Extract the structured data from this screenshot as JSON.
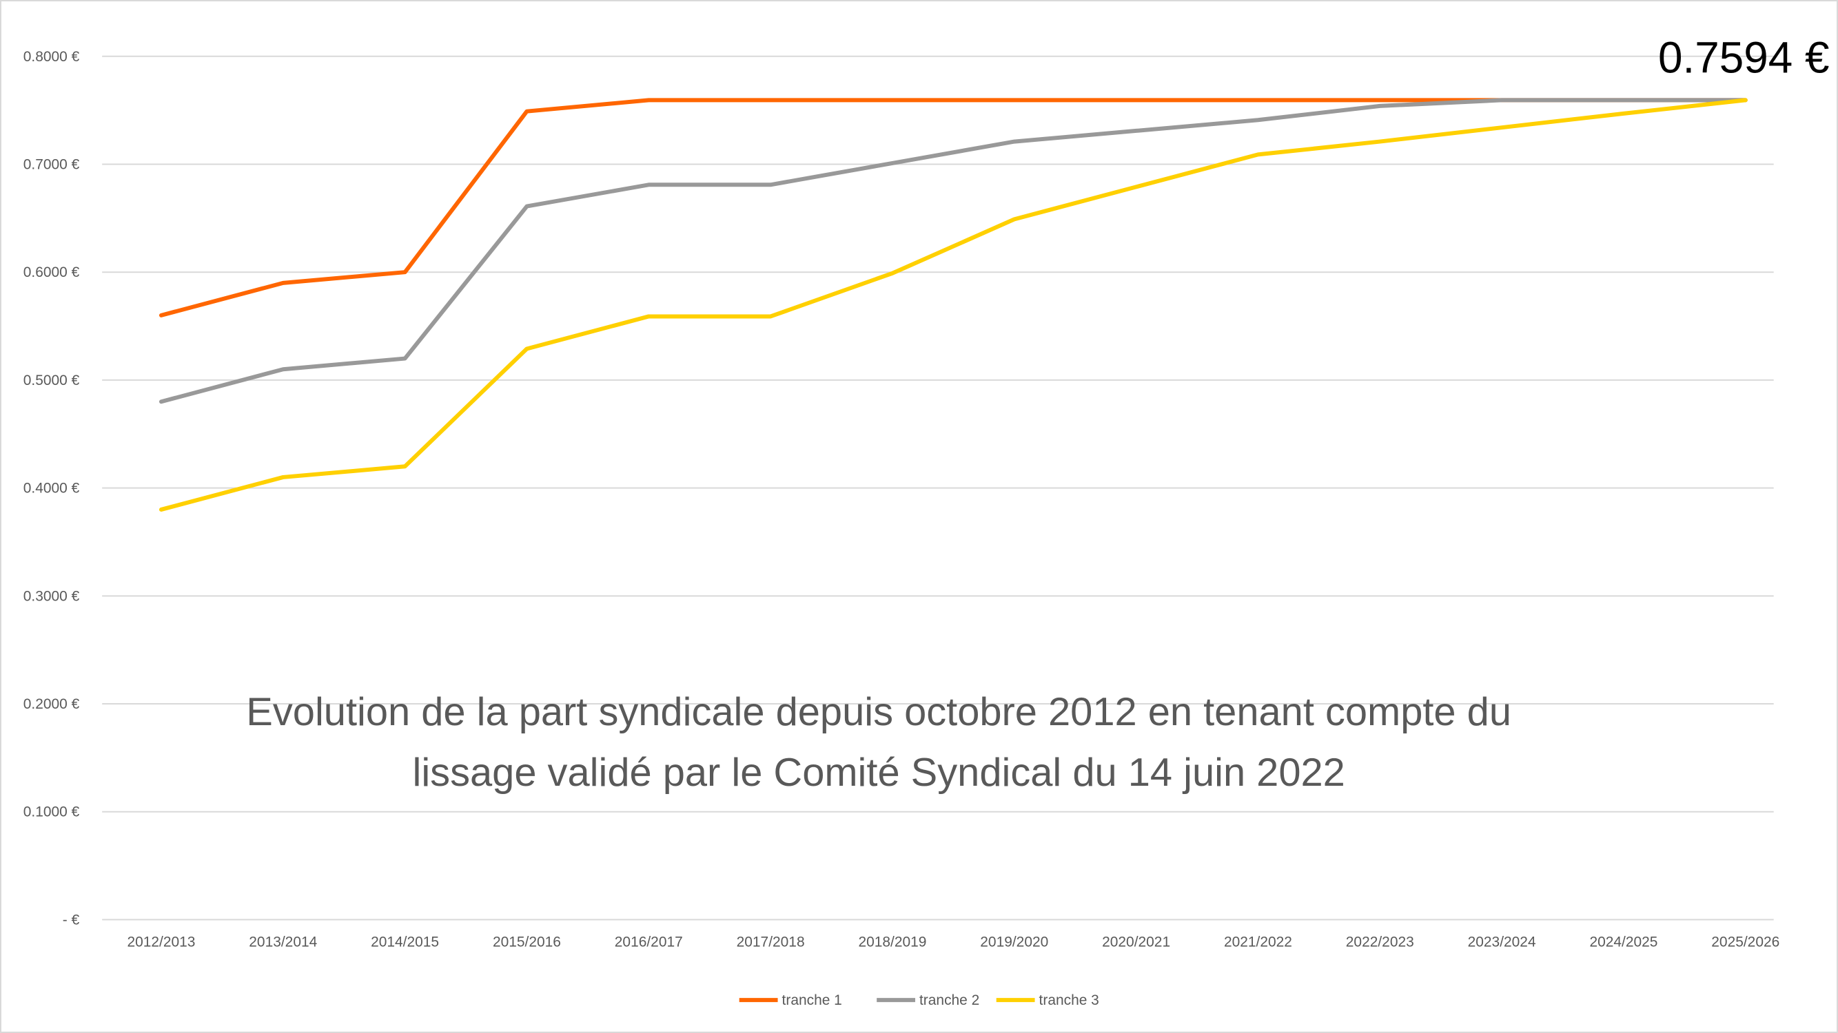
{
  "chart_data": {
    "type": "line",
    "title": [
      "Evolution de la part syndicale depuis octobre 2012 en tenant compte du",
      "lissage validé par le Comité Syndical du 14 juin 2022"
    ],
    "xlabel": "",
    "ylabel": "",
    "categories": [
      "2012/2013",
      "2013/2014",
      "2014/2015",
      "2015/2016",
      "2016/2017",
      "2017/2018",
      "2018/2019",
      "2019/2020",
      "2020/2021",
      "2021/2022",
      "2022/2023",
      "2023/2024",
      "2024/2025",
      "2025/2026"
    ],
    "ylim": [
      0,
      0.8
    ],
    "yticks": [
      0,
      0.1,
      0.2,
      0.3,
      0.4,
      0.5,
      0.6,
      0.7,
      0.8
    ],
    "ytick_labels": [
      "-  €",
      "0.1000 €",
      "0.2000 €",
      "0.3000 €",
      "0.4000 €",
      "0.5000 €",
      "0.6000 €",
      "0.7000 €",
      "0.8000 €"
    ],
    "grid": true,
    "legend_position": "bottom",
    "series": [
      {
        "name": "tranche 1",
        "color": "#FF6600",
        "values": [
          0.56,
          0.59,
          0.6,
          0.749,
          0.7594,
          0.7594,
          0.7594,
          0.7594,
          0.7594,
          0.7594,
          0.7594,
          0.7594,
          0.7594,
          0.7594
        ]
      },
      {
        "name": "tranche 2",
        "color": "#999999",
        "values": [
          0.48,
          0.51,
          0.52,
          0.661,
          0.681,
          0.681,
          0.701,
          0.721,
          0.731,
          0.741,
          0.754,
          0.7594,
          0.7594,
          0.7594
        ]
      },
      {
        "name": "tranche 3",
        "color": "#FFD000",
        "values": [
          0.38,
          0.41,
          0.42,
          0.529,
          0.559,
          0.559,
          0.599,
          0.649,
          0.679,
          0.709,
          0.721,
          0.734,
          0.747,
          0.7594
        ]
      }
    ],
    "annotations": [
      {
        "text": "0.7594 €",
        "category": "2025/2026",
        "value": 0.7594
      }
    ]
  }
}
